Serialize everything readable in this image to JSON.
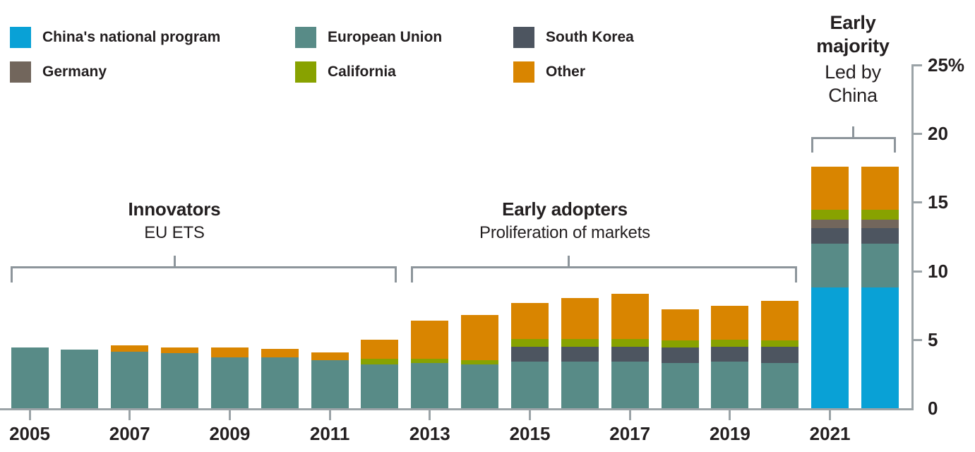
{
  "chart_data": {
    "type": "bar",
    "stacked": true,
    "title": "",
    "unit": "%",
    "grid": false,
    "legend_position": "top",
    "y_axis_side": "right",
    "ylim": [
      0,
      25
    ],
    "categories": [
      2005,
      2006,
      2007,
      2008,
      2009,
      2010,
      2011,
      2012,
      2013,
      2014,
      2015,
      2016,
      2017,
      2018,
      2019,
      2020,
      2021,
      2022
    ],
    "stack_order_bottom_to_top": [
      "China's national program",
      "European Union",
      "South Korea",
      "Germany",
      "California",
      "Other"
    ],
    "series": [
      {
        "name": "China's national program",
        "color": "#09a1d6",
        "values": [
          0,
          0,
          0,
          0,
          0,
          0,
          0,
          0,
          0,
          0,
          0,
          0,
          0,
          0,
          0,
          0,
          8.8,
          8.8
        ]
      },
      {
        "name": "European Union",
        "color": "#588b87",
        "values": [
          4.4,
          4.25,
          4.1,
          4.0,
          3.7,
          3.7,
          3.5,
          3.2,
          3.3,
          3.2,
          3.4,
          3.4,
          3.4,
          3.3,
          3.4,
          3.3,
          3.2,
          3.2
        ]
      },
      {
        "name": "South Korea",
        "color": "#4d5560",
        "values": [
          0,
          0,
          0,
          0,
          0,
          0,
          0,
          0,
          0,
          0,
          1.05,
          1.05,
          1.05,
          1.1,
          1.1,
          1.15,
          1.1,
          1.1
        ]
      },
      {
        "name": "Germany",
        "color": "#72665c",
        "values": [
          0,
          0,
          0,
          0,
          0,
          0,
          0,
          0,
          0,
          0,
          0,
          0,
          0,
          0,
          0,
          0,
          0.65,
          0.65
        ]
      },
      {
        "name": "California",
        "color": "#88a200",
        "values": [
          0,
          0,
          0,
          0,
          0,
          0,
          0,
          0.4,
          0.3,
          0.3,
          0.6,
          0.6,
          0.6,
          0.55,
          0.5,
          0.5,
          0.7,
          0.7
        ]
      },
      {
        "name": "Other",
        "color": "#d98500",
        "values": [
          0,
          0,
          0.5,
          0.4,
          0.7,
          0.6,
          0.55,
          1.4,
          2.8,
          3.3,
          2.6,
          2.95,
          3.3,
          2.25,
          2.45,
          2.85,
          3.15,
          3.15
        ]
      }
    ],
    "y_ticks": [
      {
        "value": 25,
        "label": "25%"
      },
      {
        "value": 20,
        "label": "20"
      },
      {
        "value": 15,
        "label": "15"
      },
      {
        "value": 10,
        "label": "10"
      },
      {
        "value": 5,
        "label": "5"
      },
      {
        "value": 0,
        "label": "0"
      }
    ],
    "x_ticks": [
      {
        "year": 2005,
        "label": "2005"
      },
      {
        "year": 2007,
        "label": "2007"
      },
      {
        "year": 2009,
        "label": "2009"
      },
      {
        "year": 2011,
        "label": "2011"
      },
      {
        "year": 2013,
        "label": "2013"
      },
      {
        "year": 2015,
        "label": "2015"
      },
      {
        "year": 2017,
        "label": "2017"
      },
      {
        "year": 2019,
        "label": "2019"
      },
      {
        "year": 2021,
        "label": "2021"
      }
    ]
  },
  "legend": {
    "items": [
      {
        "label": "China's national program",
        "color": "#09a1d6"
      },
      {
        "label": "European Union",
        "color": "#588b87"
      },
      {
        "label": "South Korea",
        "color": "#4d5560"
      },
      {
        "label": "Germany",
        "color": "#72665c"
      },
      {
        "label": "California",
        "color": "#88a200"
      },
      {
        "label": "Other",
        "color": "#d98500"
      }
    ]
  },
  "annotations": [
    {
      "title": "Innovators",
      "subtitle": "EU ETS"
    },
    {
      "title": "Early adopters",
      "subtitle": "Proliferation of markets"
    },
    {
      "title": "Early majority",
      "subtitle": "Led by China"
    }
  ],
  "colors": {
    "axis": "#9ba3a7",
    "bracket": "#8d959b",
    "text": "#231f20"
  }
}
